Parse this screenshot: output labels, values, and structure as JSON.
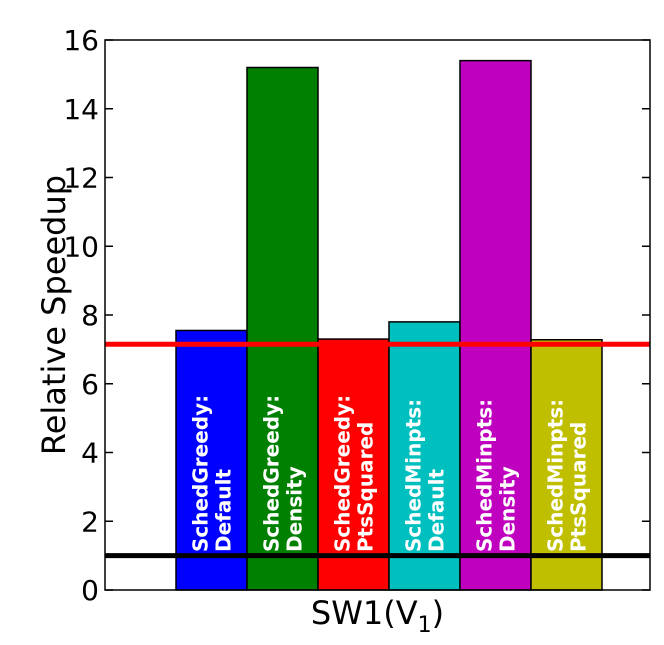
{
  "chart_data": {
    "type": "bar",
    "title": "",
    "xlabel": "SW1(V",
    "xlabel_subscript": "1",
    "xlabel_close": ")",
    "ylabel": "Relative Speedup",
    "ylim": [
      0,
      16
    ],
    "yticks": [
      0,
      2,
      4,
      6,
      8,
      10,
      12,
      14,
      16
    ],
    "grid": false,
    "categories": [
      "SchedGreedy:\nDefault",
      "SchedGreedy:\nDensity",
      "SchedGreedy:\nPtsSquared",
      "SchedMinpts:\nDefault",
      "SchedMinpts:\nDensity",
      "SchedMinpts:\nPtsSquared"
    ],
    "values": [
      7.55,
      15.2,
      7.3,
      7.8,
      15.4,
      7.28
    ],
    "colors": [
      "#0000ff",
      "#008000",
      "#ff0000",
      "#00bfbf",
      "#bf00bf",
      "#bfbf00"
    ],
    "reference_lines": [
      {
        "value": 7.15,
        "color": "#ff0000"
      },
      {
        "value": 1.0,
        "color": "#000000"
      }
    ]
  }
}
